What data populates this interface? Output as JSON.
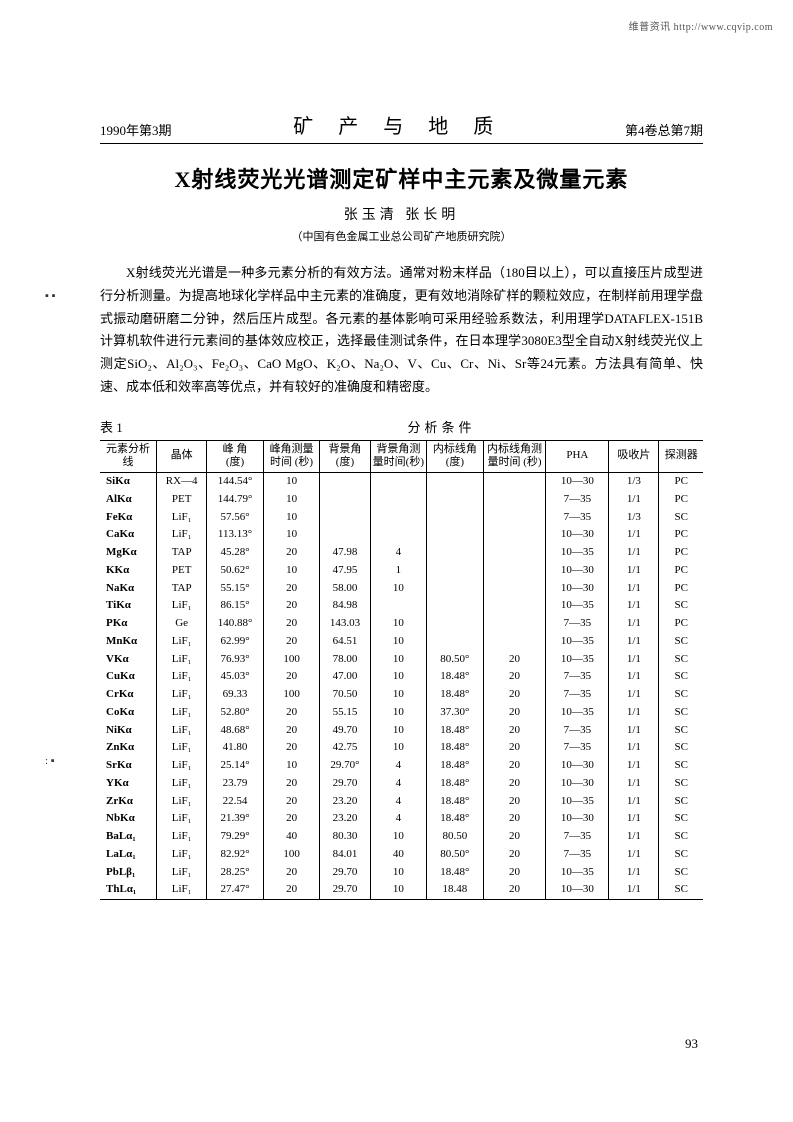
{
  "watermark": "维普资讯 http://www.cqvip.com",
  "runhead": {
    "left": "1990年第3期",
    "center": "矿 产 与 地 质",
    "right": "第4卷总第7期"
  },
  "title": "X射线荧光光谱测定矿样中主元素及微量元素",
  "authors": "张玉清    张长明",
  "affiliation": "（中国有色金属工业总公司矿产地质研究院）",
  "abstract": "X射线荧光光谱是一种多元素分析的有效方法。通常对粉末样品（180目以上），可以直接压片成型进行分析测量。为提高地球化学样品中主元素的准确度，更有效地消除矿样的颗粒效应，在制样前用理学盘式振动磨研磨二分钟，然后压片成型。各元素的基体影响可采用经验系数法，利用理学DATAFLEX-151B计算机软件进行元素间的基体效应校正，选择最佳测试条件，在日本理学3080E3型全自动X射线荧光仪上测定SiO₂、Al₂O₃、Fe₂O₃、CaO MgO、K₂O、Na₂O、V、Cu、Cr、Ni、Sr等24元素。方法具有简单、快速、成本低和效率高等优点，并有较好的准确度和精密度。",
  "table_label_left": "表 1",
  "table_label_center": "分析条件",
  "columns": [
    "元素分析线",
    "晶体",
    "峰 角\n(度)",
    "峰角测量\n时间 (秒)",
    "背景角\n(度)",
    "背景角测\n量时间(秒)",
    "内标线角\n(度)",
    "内标线角测\n量时间 (秒)",
    "PHA",
    "吸收片",
    "探测器"
  ],
  "rows": [
    [
      "SiKα",
      "RX—4",
      "144.54°",
      "10",
      "",
      "",
      "",
      "",
      "10—30",
      "1/3",
      "PC"
    ],
    [
      "AlKα",
      "PET",
      "144.79°",
      "10",
      "",
      "",
      "",
      "",
      "7—35",
      "1/1",
      "PC"
    ],
    [
      "FeKα",
      "LiF₁",
      "57.56°",
      "10",
      "",
      "",
      "",
      "",
      "7—35",
      "1/3",
      "SC"
    ],
    [
      "CaKα",
      "LiF₁",
      "113.13°",
      "10",
      "",
      "",
      "",
      "",
      "10—30",
      "1/1",
      "PC"
    ],
    [
      "MgKα",
      "TAP",
      "45.28°",
      "20",
      "47.98",
      "4",
      "",
      "",
      "10—35",
      "1/1",
      "PC"
    ],
    [
      "KKα",
      "PET",
      "50.62°",
      "10",
      "47.95",
      "1",
      "",
      "",
      "10—30",
      "1/1",
      "PC"
    ],
    [
      "NaKα",
      "TAP",
      "55.15°",
      "20",
      "58.00",
      "10",
      "",
      "",
      "10—30",
      "1/1",
      "PC"
    ],
    [
      "TiKα",
      "LiF₁",
      "86.15°",
      "20",
      "84.98",
      "",
      "",
      "",
      "10—35",
      "1/1",
      "SC"
    ],
    [
      "PKα",
      "Ge",
      "140.88°",
      "20",
      "143.03",
      "10",
      "",
      "",
      "7—35",
      "1/1",
      "PC"
    ],
    [
      "MnKα",
      "LiF₁",
      "62.99°",
      "20",
      "64.51",
      "10",
      "",
      "",
      "10—35",
      "1/1",
      "SC"
    ],
    [
      "VKα",
      "LiF₁",
      "76.93°",
      "100",
      "78.00",
      "10",
      "80.50°",
      "20",
      "10—35",
      "1/1",
      "SC"
    ],
    [
      "CuKα",
      "LiF₁",
      "45.03°",
      "20",
      "47.00",
      "10",
      "18.48°",
      "20",
      "7—35",
      "1/1",
      "SC"
    ],
    [
      "CrKα",
      "LiF₁",
      "69.33",
      "100",
      "70.50",
      "10",
      "18.48°",
      "20",
      "7—35",
      "1/1",
      "SC"
    ],
    [
      "CoKα",
      "LiF₁",
      "52.80°",
      "20",
      "55.15",
      "10",
      "37.30°",
      "20",
      "10—35",
      "1/1",
      "SC"
    ],
    [
      "NiKα",
      "LiF₁",
      "48.68°",
      "20",
      "49.70",
      "10",
      "18.48°",
      "20",
      "7—35",
      "1/1",
      "SC"
    ],
    [
      "ZnKα",
      "LiF₁",
      "41.80",
      "20",
      "42.75",
      "10",
      "18.48°",
      "20",
      "7—35",
      "1/1",
      "SC"
    ],
    [
      "SrKα",
      "LiF₁",
      "25.14°",
      "10",
      "29.70°",
      "4",
      "18.48°",
      "20",
      "10—30",
      "1/1",
      "SC"
    ],
    [
      "YKα",
      "LiF₁",
      "23.79",
      "20",
      "29.70",
      "4",
      "18.48°",
      "20",
      "10—30",
      "1/1",
      "SC"
    ],
    [
      "ZrKα",
      "LiF₁",
      "22.54",
      "20",
      "23.20",
      "4",
      "18.48°",
      "20",
      "10—35",
      "1/1",
      "SC"
    ],
    [
      "NbKα",
      "LiF₁",
      "21.39°",
      "20",
      "23.20",
      "4",
      "18.48°",
      "20",
      "10—30",
      "1/1",
      "SC"
    ],
    [
      "BaLα₁",
      "LiF₁",
      "79.29°",
      "40",
      "80.30",
      "10",
      "80.50",
      "20",
      "7—35",
      "1/1",
      "SC"
    ],
    [
      "LaLα₁",
      "LiF₁",
      "82.92°",
      "100",
      "84.01",
      "40",
      "80.50°",
      "20",
      "7—35",
      "1/1",
      "SC"
    ],
    [
      "PbLβ₁",
      "LiF₁",
      "28.25°",
      "20",
      "29.70",
      "10",
      "18.48°",
      "20",
      "10—35",
      "1/1",
      "SC"
    ],
    [
      "ThLα₁",
      "LiF₁",
      "27.47°",
      "20",
      "29.70",
      "10",
      "18.48",
      "20",
      "10—30",
      "1/1",
      "SC"
    ]
  ],
  "page_number": "93",
  "side_marks": {
    "a": "▪\n▪",
    "b": ":\n▪"
  }
}
